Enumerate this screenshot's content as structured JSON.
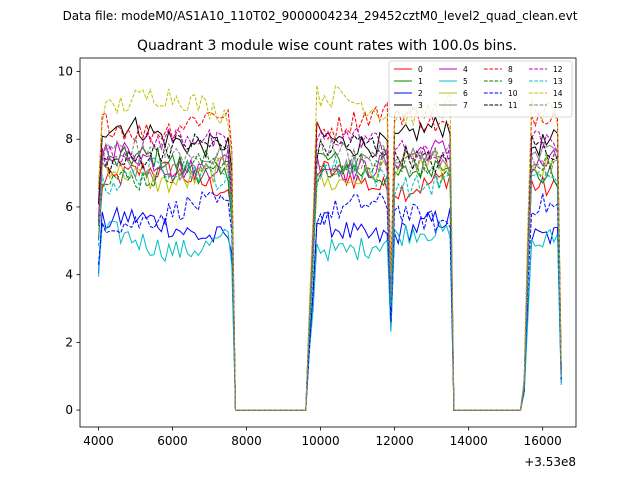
{
  "chart_data": {
    "type": "line",
    "suptitle": "Data file: modeM0/AS1A10_110T02_9000004234_29452cztM0_level2_quad_clean.evt",
    "title": "Quadrant 3 module wise count rates with 100.0s bins.",
    "xlabel": "",
    "ylabel": "",
    "x_offset_label": "+3.53e8",
    "xlim": [
      3500,
      16900
    ],
    "ylim": [
      -0.5,
      10.4
    ],
    "x_ticks": [
      4000,
      6000,
      8000,
      10000,
      12000,
      14000,
      16000
    ],
    "y_ticks": [
      0,
      2,
      4,
      6,
      8,
      10
    ],
    "legend_position": "top-right",
    "series_meta": [
      {
        "name": "0",
        "color": "#ff0000",
        "dash": "solid",
        "level": 6.8,
        "amp": 0.35
      },
      {
        "name": "1",
        "color": "#008000",
        "dash": "solid",
        "level": 7.2,
        "amp": 0.35
      },
      {
        "name": "2",
        "color": "#0000ff",
        "dash": "solid",
        "level": 5.4,
        "amp": 0.35
      },
      {
        "name": "3",
        "color": "#000000",
        "dash": "solid",
        "level": 8.1,
        "amp": 0.35
      },
      {
        "name": "4",
        "color": "#bf00bf",
        "dash": "solid",
        "level": 7.4,
        "amp": 0.35
      },
      {
        "name": "5",
        "color": "#00bfbf",
        "dash": "solid",
        "level": 5.0,
        "amp": 0.35
      },
      {
        "name": "6",
        "color": "#bfbf00",
        "dash": "solid",
        "level": 7.0,
        "amp": 0.35
      },
      {
        "name": "7",
        "color": "#808080",
        "dash": "solid",
        "level": 7.3,
        "amp": 0.35
      },
      {
        "name": "8",
        "color": "#ff0000",
        "dash": "dashed",
        "level": 8.5,
        "amp": 0.35
      },
      {
        "name": "9",
        "color": "#008000",
        "dash": "dashed",
        "level": 7.1,
        "amp": 0.35
      },
      {
        "name": "10",
        "color": "#0000ff",
        "dash": "dashed",
        "level": 5.8,
        "amp": 0.35
      },
      {
        "name": "11",
        "color": "#000000",
        "dash": "dashed",
        "level": 7.6,
        "amp": 0.35
      },
      {
        "name": "12",
        "color": "#bf00bf",
        "dash": "dashed",
        "level": 7.8,
        "amp": 0.35
      },
      {
        "name": "13",
        "color": "#00bfbf",
        "dash": "dashed",
        "level": 6.9,
        "amp": 0.35
      },
      {
        "name": "14",
        "color": "#bfbf00",
        "dash": "dashed",
        "level": 9.0,
        "amp": 0.35
      },
      {
        "name": "15",
        "color": "#808080",
        "dash": "dashed",
        "level": 7.5,
        "amp": 0.35
      }
    ],
    "segments": [
      {
        "start": 4000,
        "end": 7600,
        "step": 100
      },
      {
        "start": 9700,
        "end": 13500,
        "step": 100
      },
      {
        "start": 15500,
        "end": 16500,
        "step": 100
      }
    ],
    "gaps": [
      [
        7700,
        9600
      ],
      [
        13600,
        15400
      ]
    ],
    "gap_value": 0
  }
}
